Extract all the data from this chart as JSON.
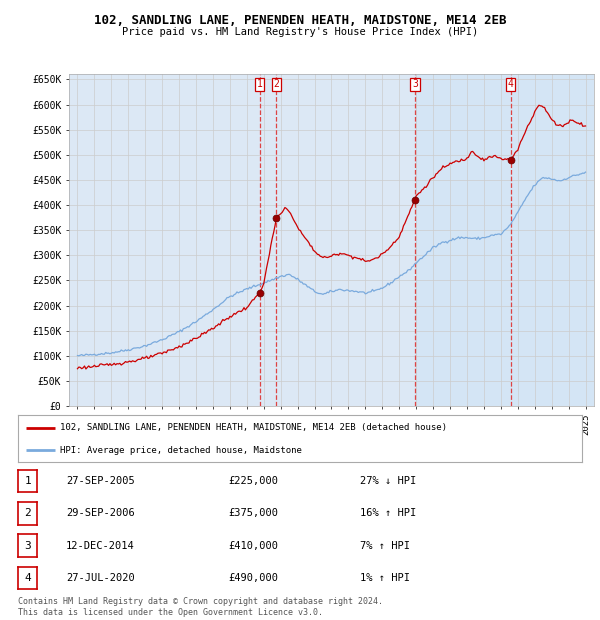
{
  "title": "102, SANDLING LANE, PENENDEN HEATH, MAIDSTONE, ME14 2EB",
  "subtitle": "Price paid vs. HM Land Registry's House Price Index (HPI)",
  "background_color": "#ffffff",
  "grid_color": "#cccccc",
  "plot_bg": "#dce8f5",
  "plot_bg_shaded": "#ccddf0",
  "legend_label_red": "102, SANDLING LANE, PENENDEN HEATH, MAIDSTONE, ME14 2EB (detached house)",
  "legend_label_blue": "HPI: Average price, detached house, Maidstone",
  "footer": "Contains HM Land Registry data © Crown copyright and database right 2024.\nThis data is licensed under the Open Government Licence v3.0.",
  "transactions": [
    {
      "num": 1,
      "date": "27-SEP-2005",
      "price": "£225,000",
      "change": "27% ↓ HPI",
      "year": 2005.75
    },
    {
      "num": 2,
      "date": "29-SEP-2006",
      "price": "£375,000",
      "change": "16% ↑ HPI",
      "year": 2006.75
    },
    {
      "num": 3,
      "date": "12-DEC-2014",
      "price": "£410,000",
      "change": "7% ↑ HPI",
      "year": 2014.92
    },
    {
      "num": 4,
      "date": "27-JUL-2020",
      "price": "£490,000",
      "change": "1% ↑ HPI",
      "year": 2020.58
    }
  ],
  "shade_start": 2014.92,
  "ylim": [
    0,
    660000
  ],
  "xlim": [
    1994.5,
    2025.5
  ],
  "yticks": [
    0,
    50000,
    100000,
    150000,
    200000,
    250000,
    300000,
    350000,
    400000,
    450000,
    500000,
    550000,
    600000,
    650000
  ],
  "ytick_labels": [
    "£0",
    "£50K",
    "£100K",
    "£150K",
    "£200K",
    "£250K",
    "£300K",
    "£350K",
    "£400K",
    "£450K",
    "£500K",
    "£550K",
    "£600K",
    "£650K"
  ],
  "xtick_years": [
    1995,
    1996,
    1997,
    1998,
    1999,
    2000,
    2001,
    2002,
    2003,
    2004,
    2005,
    2006,
    2007,
    2008,
    2009,
    2010,
    2011,
    2012,
    2013,
    2014,
    2015,
    2016,
    2017,
    2018,
    2019,
    2020,
    2021,
    2022,
    2023,
    2024,
    2025
  ],
  "vline_color": "#dd4444",
  "red_line_color": "#cc0000",
  "blue_line_color": "#7aaadd",
  "dot_values": [
    225000,
    375000,
    410000,
    490000
  ],
  "dot_years": [
    2005.75,
    2006.75,
    2014.92,
    2020.58
  ]
}
